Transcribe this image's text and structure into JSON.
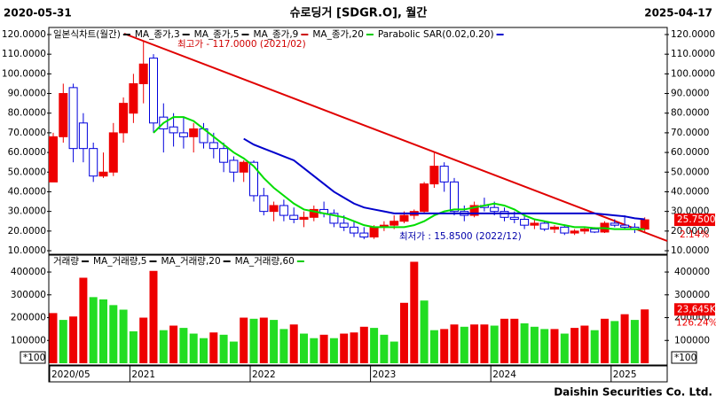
{
  "header": {
    "left": "2020-05-31",
    "title": "슈로딩거 [SDGR.O], 월간",
    "right": "2025-04-17"
  },
  "footer": "Daishin Securities Co. Ltd.",
  "chart_data": [
    {
      "type": "candlestick",
      "legend": [
        {
          "name": "일본식차트(월간)",
          "color": "#000000"
        },
        {
          "name": "MA_종가,3",
          "color": "#000000"
        },
        {
          "name": "MA_종가,5",
          "color": "#000000"
        },
        {
          "name": "MA_종가,9",
          "color": "#cc0000"
        },
        {
          "name": "MA_종가,20",
          "color": "#00cc00"
        },
        {
          "name": "Parabolic SAR(0.02,0.20)",
          "color": "#0000cc"
        }
      ],
      "categories": [
        "2020/05",
        null,
        null,
        null,
        null,
        null,
        null,
        null,
        "2021",
        null,
        null,
        null,
        null,
        null,
        null,
        null,
        null,
        null,
        null,
        null,
        "2022",
        null,
        null,
        null,
        null,
        null,
        null,
        null,
        null,
        null,
        null,
        null,
        "2023",
        null,
        null,
        null,
        null,
        null,
        null,
        null,
        null,
        null,
        null,
        null,
        "2024",
        null,
        null,
        null,
        null,
        null,
        null,
        null,
        null,
        null,
        null,
        null,
        "2025",
        null,
        null,
        null
      ],
      "open": [
        45,
        68,
        93,
        75,
        62,
        48,
        50,
        70,
        80,
        95,
        108,
        78,
        73,
        70,
        68,
        72,
        65,
        62,
        56,
        50,
        55,
        38,
        30,
        33,
        28,
        26,
        27,
        31,
        29,
        24,
        22,
        19,
        17,
        22,
        23,
        25,
        28,
        30,
        44,
        53,
        45,
        30,
        28,
        33,
        32,
        30,
        27,
        26,
        23,
        24,
        21,
        22,
        19,
        20,
        21,
        19.5,
        24,
        23,
        22,
        21
      ],
      "high": [
        70,
        95,
        95,
        80,
        65,
        60,
        75,
        88,
        100,
        117,
        110,
        85,
        80,
        78,
        75,
        75,
        70,
        65,
        58,
        56,
        56,
        42,
        35,
        36,
        32,
        30,
        33,
        35,
        31,
        28,
        25,
        22,
        23,
        25,
        28,
        30,
        31,
        45,
        60,
        55,
        47,
        33,
        35,
        37,
        35,
        32,
        30,
        28,
        26,
        25,
        23,
        23,
        21,
        22,
        22,
        25,
        26,
        28,
        24,
        27
      ],
      "low": [
        45,
        65,
        55,
        55,
        45,
        47,
        48,
        65,
        75,
        85,
        70,
        60,
        63,
        62,
        60,
        62,
        57,
        50,
        45,
        45,
        35,
        28,
        25,
        25,
        24,
        22,
        25,
        27,
        22,
        20,
        17,
        15.85,
        16,
        20,
        21,
        24,
        26,
        29,
        42,
        40,
        28,
        25,
        27,
        30,
        28,
        25,
        24,
        21,
        21,
        20,
        19,
        18,
        18,
        18.5,
        19,
        19,
        22,
        21,
        19,
        19
      ],
      "close": [
        68,
        90,
        62,
        62,
        48,
        50,
        70,
        85,
        95,
        105,
        75,
        72,
        70,
        68,
        72,
        65,
        62,
        55,
        50,
        55,
        38,
        30,
        33,
        28,
        26,
        27,
        31,
        29,
        24,
        22,
        19,
        17,
        22,
        23,
        25,
        28,
        30,
        44,
        53,
        45,
        30,
        28,
        33,
        32,
        30,
        27,
        26,
        23,
        24,
        21,
        22,
        19,
        20,
        21,
        19.5,
        24,
        23,
        22,
        21,
        25.75
      ],
      "up_color": "#ee0000",
      "down_color": "#0000dd",
      "series": [
        {
          "name": "MA_종가,20",
          "color": "#00dd00",
          "values": [
            null,
            null,
            null,
            null,
            null,
            null,
            null,
            null,
            null,
            null,
            70,
            75,
            78,
            78,
            76,
            72,
            68,
            64,
            60,
            57,
            53,
            47,
            42,
            38,
            34,
            31,
            30,
            29,
            28,
            27,
            25,
            23,
            22,
            22,
            22,
            22,
            23,
            25,
            28,
            30,
            31,
            31,
            32,
            33,
            34,
            33,
            31,
            28,
            26,
            25,
            24,
            23,
            22,
            22,
            21.5,
            21.5,
            21,
            21,
            21,
            21
          ]
        },
        {
          "name": "Parabolic SAR(0.02,0.20)",
          "color": "#0000cc",
          "values": [
            null,
            null,
            null,
            null,
            null,
            null,
            null,
            null,
            null,
            null,
            null,
            null,
            null,
            null,
            null,
            null,
            null,
            null,
            null,
            67,
            64,
            62,
            60,
            58,
            56,
            52,
            48,
            44,
            40,
            37,
            34,
            32,
            31,
            30,
            29,
            29,
            29,
            29,
            29,
            29,
            29,
            29,
            29,
            29,
            29,
            29,
            29,
            29,
            29,
            29,
            29,
            29,
            29,
            29,
            29,
            28.5,
            28,
            27.5,
            26.5,
            26
          ]
        }
      ],
      "ylim": [
        8.2,
        123.6
      ],
      "yticks": [
        {
          "value": 10,
          "label": "10.0000"
        },
        {
          "value": 20,
          "label": "20.0000"
        },
        {
          "value": 30,
          "label": "30.0000"
        },
        {
          "value": 40,
          "label": "40.0000"
        },
        {
          "value": 50,
          "label": "50.0000"
        },
        {
          "value": 60,
          "label": "60.0000"
        },
        {
          "value": 70,
          "label": "70.0000"
        },
        {
          "value": 80,
          "label": "80.0000"
        },
        {
          "value": 90,
          "label": "90.0000"
        },
        {
          "value": 100,
          "label": "100.0000"
        },
        {
          "value": 110,
          "label": "110.0000"
        },
        {
          "value": 120,
          "label": "120.0000"
        }
      ],
      "high_label": "최고가 - 117.0000 (2021/02)",
      "low_label": "최저가 : 15.8500 (2022/12)",
      "last_price": {
        "value": 25.75,
        "label": "25.7500"
      },
      "change": "2.14%"
    },
    {
      "type": "bar",
      "legend": [
        {
          "name": "거래량",
          "color": "#000000"
        },
        {
          "name": "MA_거래량,5",
          "color": "#000000"
        },
        {
          "name": "MA_거래량,20",
          "color": "#000000"
        },
        {
          "name": "MA_거래량,60",
          "color": "#00cc00"
        }
      ],
      "values": [
        220000,
        190000,
        205000,
        375000,
        290000,
        280000,
        255000,
        235000,
        140000,
        200000,
        405000,
        145000,
        165000,
        155000,
        130000,
        110000,
        135000,
        125000,
        95000,
        200000,
        195000,
        200000,
        190000,
        150000,
        170000,
        130000,
        110000,
        125000,
        110000,
        130000,
        135000,
        160000,
        155000,
        125000,
        95000,
        265000,
        445000,
        275000,
        145000,
        150000,
        170000,
        160000,
        170000,
        170000,
        165000,
        195000,
        195000,
        175000,
        160000,
        150000,
        150000,
        130000,
        155000,
        165000,
        145000,
        195000,
        185000,
        215000,
        190000,
        236000
      ],
      "up_color": "#ee0000",
      "down_color": "#22dd22",
      "ylim": [
        0,
        474000
      ],
      "yticks": [
        100000,
        200000,
        300000,
        400000
      ],
      "last_label": "23,645K",
      "change": "126.24%",
      "unit": "*100"
    }
  ]
}
